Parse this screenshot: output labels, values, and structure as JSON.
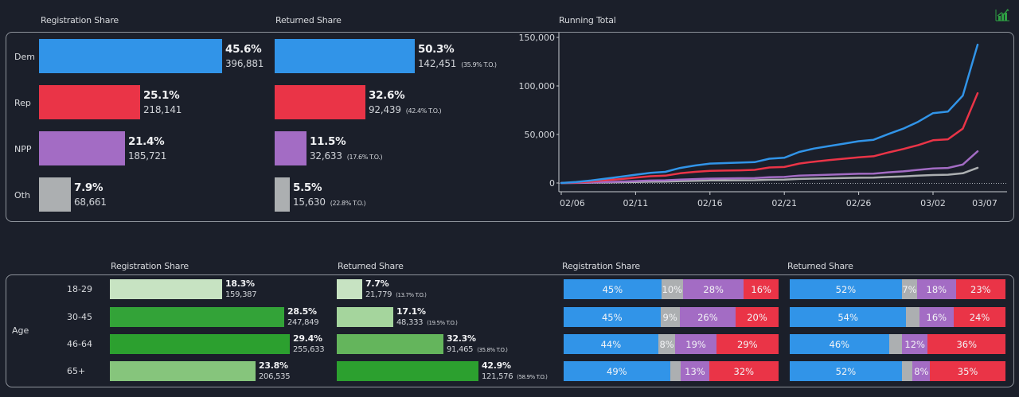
{
  "colors": {
    "dem": "#3194e8",
    "rep": "#ea3447",
    "npp": "#a36cc4",
    "oth": "#acafb1",
    "age_18_29": "#c7e3c2",
    "age_30_45": "#33a338",
    "age_46_64": "#2ca02f",
    "age_65": "#86c57c",
    "ret_18_29": "#c7e3c2",
    "ret_30_45": "#a5d59d",
    "ret_46_64": "#64b55c",
    "ret_65": "#2ca02f",
    "icon_green": "#2ea043"
  },
  "toolbar": {
    "icon": "chart-growth-icon"
  },
  "party_section": {
    "registration_header": "Registration Share",
    "returned_header": "Returned Share",
    "running_total_header": "Running Total",
    "rows": [
      {
        "key": "dem",
        "label": "Dem",
        "reg_pct": 45.6,
        "reg_pct_label": "45.6%",
        "reg_count": "396,881",
        "ret_pct": 50.3,
        "ret_pct_label": "50.3%",
        "ret_count": "142,451",
        "ret_to": "(35.9% T.O.)"
      },
      {
        "key": "rep",
        "label": "Rep",
        "reg_pct": 25.1,
        "reg_pct_label": "25.1%",
        "reg_count": "218,141",
        "ret_pct": 32.6,
        "ret_pct_label": "32.6%",
        "ret_count": "92,439",
        "ret_to": "(42.4% T.O.)"
      },
      {
        "key": "npp",
        "label": "NPP",
        "reg_pct": 21.4,
        "reg_pct_label": "21.4%",
        "reg_count": "185,721",
        "ret_pct": 11.5,
        "ret_pct_label": "11.5%",
        "ret_count": "32,633",
        "ret_to": "(17.6% T.O.)"
      },
      {
        "key": "oth",
        "label": "Oth",
        "reg_pct": 7.9,
        "reg_pct_label": "7.9%",
        "reg_count": "68,661",
        "ret_pct": 5.5,
        "ret_pct_label": "5.5%",
        "ret_count": "15,630",
        "ret_to": "(22.8% T.O.)"
      }
    ]
  },
  "age_section": {
    "dimension_label": "Age",
    "registration_header": "Registration Share",
    "returned_header": "Returned Share",
    "stack_registration_header": "Registration Share",
    "stack_returned_header": "Returned Share",
    "rows": [
      {
        "label": "18-29",
        "reg_pct": 18.3,
        "reg_pct_label": "18.3%",
        "reg_count": "159,387",
        "reg_color": "age_18_29",
        "ret_pct": 7.7,
        "ret_pct_label": "7.7%",
        "ret_count": "21,779",
        "ret_to": "(13.7% T.O.)",
        "ret_color": "ret_18_29",
        "reg_stack": [
          {
            "party": "dem",
            "value": 45,
            "label": "45%"
          },
          {
            "party": "oth",
            "value": 10,
            "label": "10%"
          },
          {
            "party": "npp",
            "value": 28,
            "label": "28%"
          },
          {
            "party": "rep",
            "value": 16,
            "label": "16%"
          }
        ],
        "ret_stack": [
          {
            "party": "dem",
            "value": 52,
            "label": "52%"
          },
          {
            "party": "oth",
            "value": 7,
            "label": "7%"
          },
          {
            "party": "npp",
            "value": 18,
            "label": "18%"
          },
          {
            "party": "rep",
            "value": 23,
            "label": "23%"
          }
        ]
      },
      {
        "label": "30-45",
        "reg_pct": 28.5,
        "reg_pct_label": "28.5%",
        "reg_count": "247,849",
        "reg_color": "age_30_45",
        "ret_pct": 17.1,
        "ret_pct_label": "17.1%",
        "ret_count": "48,333",
        "ret_to": "(19.5% T.O.)",
        "ret_color": "ret_30_45",
        "reg_stack": [
          {
            "party": "dem",
            "value": 45,
            "label": "45%"
          },
          {
            "party": "oth",
            "value": 9,
            "label": "9%"
          },
          {
            "party": "npp",
            "value": 26,
            "label": "26%"
          },
          {
            "party": "rep",
            "value": 20,
            "label": "20%"
          }
        ],
        "ret_stack": [
          {
            "party": "dem",
            "value": 54,
            "label": "54%"
          },
          {
            "party": "oth",
            "value": 6,
            "label": ""
          },
          {
            "party": "npp",
            "value": 16,
            "label": "16%"
          },
          {
            "party": "rep",
            "value": 24,
            "label": "24%"
          }
        ]
      },
      {
        "label": "46-64",
        "reg_pct": 29.4,
        "reg_pct_label": "29.4%",
        "reg_count": "255,633",
        "reg_color": "age_46_64",
        "ret_pct": 32.3,
        "ret_pct_label": "32.3%",
        "ret_count": "91,465",
        "ret_to": "(35.8% T.O.)",
        "ret_color": "ret_46_64",
        "reg_stack": [
          {
            "party": "dem",
            "value": 44,
            "label": "44%"
          },
          {
            "party": "oth",
            "value": 8,
            "label": "8%"
          },
          {
            "party": "npp",
            "value": 19,
            "label": "19%"
          },
          {
            "party": "rep",
            "value": 29,
            "label": "29%"
          }
        ],
        "ret_stack": [
          {
            "party": "dem",
            "value": 46,
            "label": "46%"
          },
          {
            "party": "oth",
            "value": 6,
            "label": ""
          },
          {
            "party": "npp",
            "value": 12,
            "label": "12%"
          },
          {
            "party": "rep",
            "value": 36,
            "label": "36%"
          }
        ]
      },
      {
        "label": "65+",
        "reg_pct": 23.8,
        "reg_pct_label": "23.8%",
        "reg_count": "206,535",
        "reg_color": "age_65",
        "ret_pct": 42.9,
        "ret_pct_label": "42.9%",
        "ret_count": "121,576",
        "ret_to": "(58.9% T.O.)",
        "ret_color": "ret_65",
        "reg_stack": [
          {
            "party": "dem",
            "value": 49,
            "label": "49%"
          },
          {
            "party": "oth",
            "value": 5,
            "label": ""
          },
          {
            "party": "npp",
            "value": 13,
            "label": "13%"
          },
          {
            "party": "rep",
            "value": 32,
            "label": "32%"
          }
        ],
        "ret_stack": [
          {
            "party": "dem",
            "value": 52,
            "label": "52%"
          },
          {
            "party": "oth",
            "value": 5,
            "label": ""
          },
          {
            "party": "npp",
            "value": 8,
            "label": "8%"
          },
          {
            "party": "rep",
            "value": 35,
            "label": "35%"
          }
        ]
      }
    ]
  },
  "chart_data": [
    {
      "type": "bar",
      "title": "Registration Share",
      "orientation": "horizontal",
      "categories": [
        "Dem",
        "Rep",
        "NPP",
        "Oth"
      ],
      "values": [
        45.6,
        25.1,
        21.4,
        7.9
      ],
      "counts": [
        396881,
        218141,
        185721,
        68661
      ]
    },
    {
      "type": "bar",
      "title": "Returned Share",
      "orientation": "horizontal",
      "categories": [
        "Dem",
        "Rep",
        "NPP",
        "Oth"
      ],
      "values": [
        50.3,
        32.6,
        11.5,
        5.5
      ],
      "counts": [
        142451,
        92439,
        32633,
        15630
      ],
      "turnout_pct": [
        35.9,
        42.4,
        17.6,
        22.8
      ]
    },
    {
      "type": "line",
      "title": "Running Total",
      "xlabel": "",
      "ylabel": "",
      "ylim": [
        0,
        150000
      ],
      "yticks": [
        0,
        50000,
        100000,
        150000
      ],
      "ytick_labels": [
        "0",
        "50,000",
        "100,000",
        "150,000"
      ],
      "xtick_labels": [
        "02/06",
        "02/11",
        "02/16",
        "02/21",
        "02/26",
        "03/02",
        "03/07"
      ],
      "x": [
        "02/06",
        "02/07",
        "02/08",
        "02/09",
        "02/10",
        "02/11",
        "02/12",
        "02/13",
        "02/14",
        "02/15",
        "02/16",
        "02/17",
        "02/18",
        "02/19",
        "02/20",
        "02/21",
        "02/22",
        "02/23",
        "02/24",
        "02/25",
        "02/26",
        "02/27",
        "02/28",
        "03/01",
        "03/02",
        "03/03",
        "03/04",
        "03/05",
        "03/06"
      ],
      "series": [
        {
          "name": "Dem",
          "color_key": "dem",
          "values": [
            0,
            1000,
            2500,
            4500,
            6500,
            8500,
            10500,
            11500,
            15500,
            18000,
            20000,
            20500,
            21000,
            21500,
            25000,
            26000,
            32000,
            35500,
            38000,
            40500,
            43000,
            44500,
            50500,
            56000,
            63000,
            72000,
            73500,
            90000,
            142451
          ]
        },
        {
          "name": "Rep",
          "color_key": "rep",
          "values": [
            0,
            500,
            1500,
            3000,
            4000,
            5500,
            7000,
            7500,
            10000,
            11500,
            12500,
            12800,
            13000,
            13500,
            16000,
            16500,
            20000,
            22000,
            23500,
            25000,
            26500,
            27500,
            31500,
            35000,
            39000,
            44000,
            45000,
            56000,
            92439
          ]
        },
        {
          "name": "NPP",
          "color_key": "npp",
          "values": [
            0,
            200,
            500,
            1000,
            1500,
            2000,
            2500,
            2800,
            3500,
            4000,
            4500,
            4700,
            4900,
            5000,
            6000,
            6200,
            7500,
            8000,
            8500,
            9000,
            9500,
            9700,
            11000,
            12000,
            13500,
            15000,
            15500,
            19000,
            32633
          ]
        },
        {
          "name": "Oth",
          "color_key": "oth",
          "values": [
            0,
            100,
            300,
            500,
            800,
            1000,
            1300,
            1500,
            2000,
            2300,
            2600,
            2700,
            2800,
            2900,
            3400,
            3500,
            4200,
            4500,
            4800,
            5100,
            5400,
            5500,
            6200,
            6800,
            7500,
            8200,
            8500,
            10000,
            15630
          ]
        }
      ],
      "grid": false,
      "legend": "none"
    },
    {
      "type": "bar",
      "title": "Age Registration Share",
      "orientation": "horizontal",
      "categories": [
        "18-29",
        "30-45",
        "46-64",
        "65+"
      ],
      "values": [
        18.3,
        28.5,
        29.4,
        23.8
      ],
      "counts": [
        159387,
        247849,
        255633,
        206535
      ]
    },
    {
      "type": "bar",
      "title": "Age Returned Share",
      "orientation": "horizontal",
      "categories": [
        "18-29",
        "30-45",
        "46-64",
        "65+"
      ],
      "values": [
        7.7,
        17.1,
        32.3,
        42.9
      ],
      "counts": [
        21779,
        48333,
        91465,
        121576
      ],
      "turnout_pct": [
        13.7,
        19.5,
        35.8,
        58.9
      ]
    },
    {
      "type": "bar",
      "stacked": true,
      "title": "Age Registration Share by Party",
      "categories": [
        "18-29",
        "30-45",
        "46-64",
        "65+"
      ],
      "series": [
        {
          "name": "Dem",
          "values": [
            45,
            45,
            44,
            49
          ]
        },
        {
          "name": "Oth",
          "values": [
            10,
            9,
            8,
            5
          ]
        },
        {
          "name": "NPP",
          "values": [
            28,
            26,
            19,
            13
          ]
        },
        {
          "name": "Rep",
          "values": [
            16,
            20,
            29,
            32
          ]
        }
      ]
    },
    {
      "type": "bar",
      "stacked": true,
      "title": "Age Returned Share by Party",
      "categories": [
        "18-29",
        "30-45",
        "46-64",
        "65+"
      ],
      "series": [
        {
          "name": "Dem",
          "values": [
            52,
            54,
            46,
            52
          ]
        },
        {
          "name": "Oth",
          "values": [
            7,
            6,
            6,
            5
          ]
        },
        {
          "name": "NPP",
          "values": [
            18,
            16,
            12,
            8
          ]
        },
        {
          "name": "Rep",
          "values": [
            23,
            24,
            36,
            35
          ]
        }
      ]
    }
  ]
}
